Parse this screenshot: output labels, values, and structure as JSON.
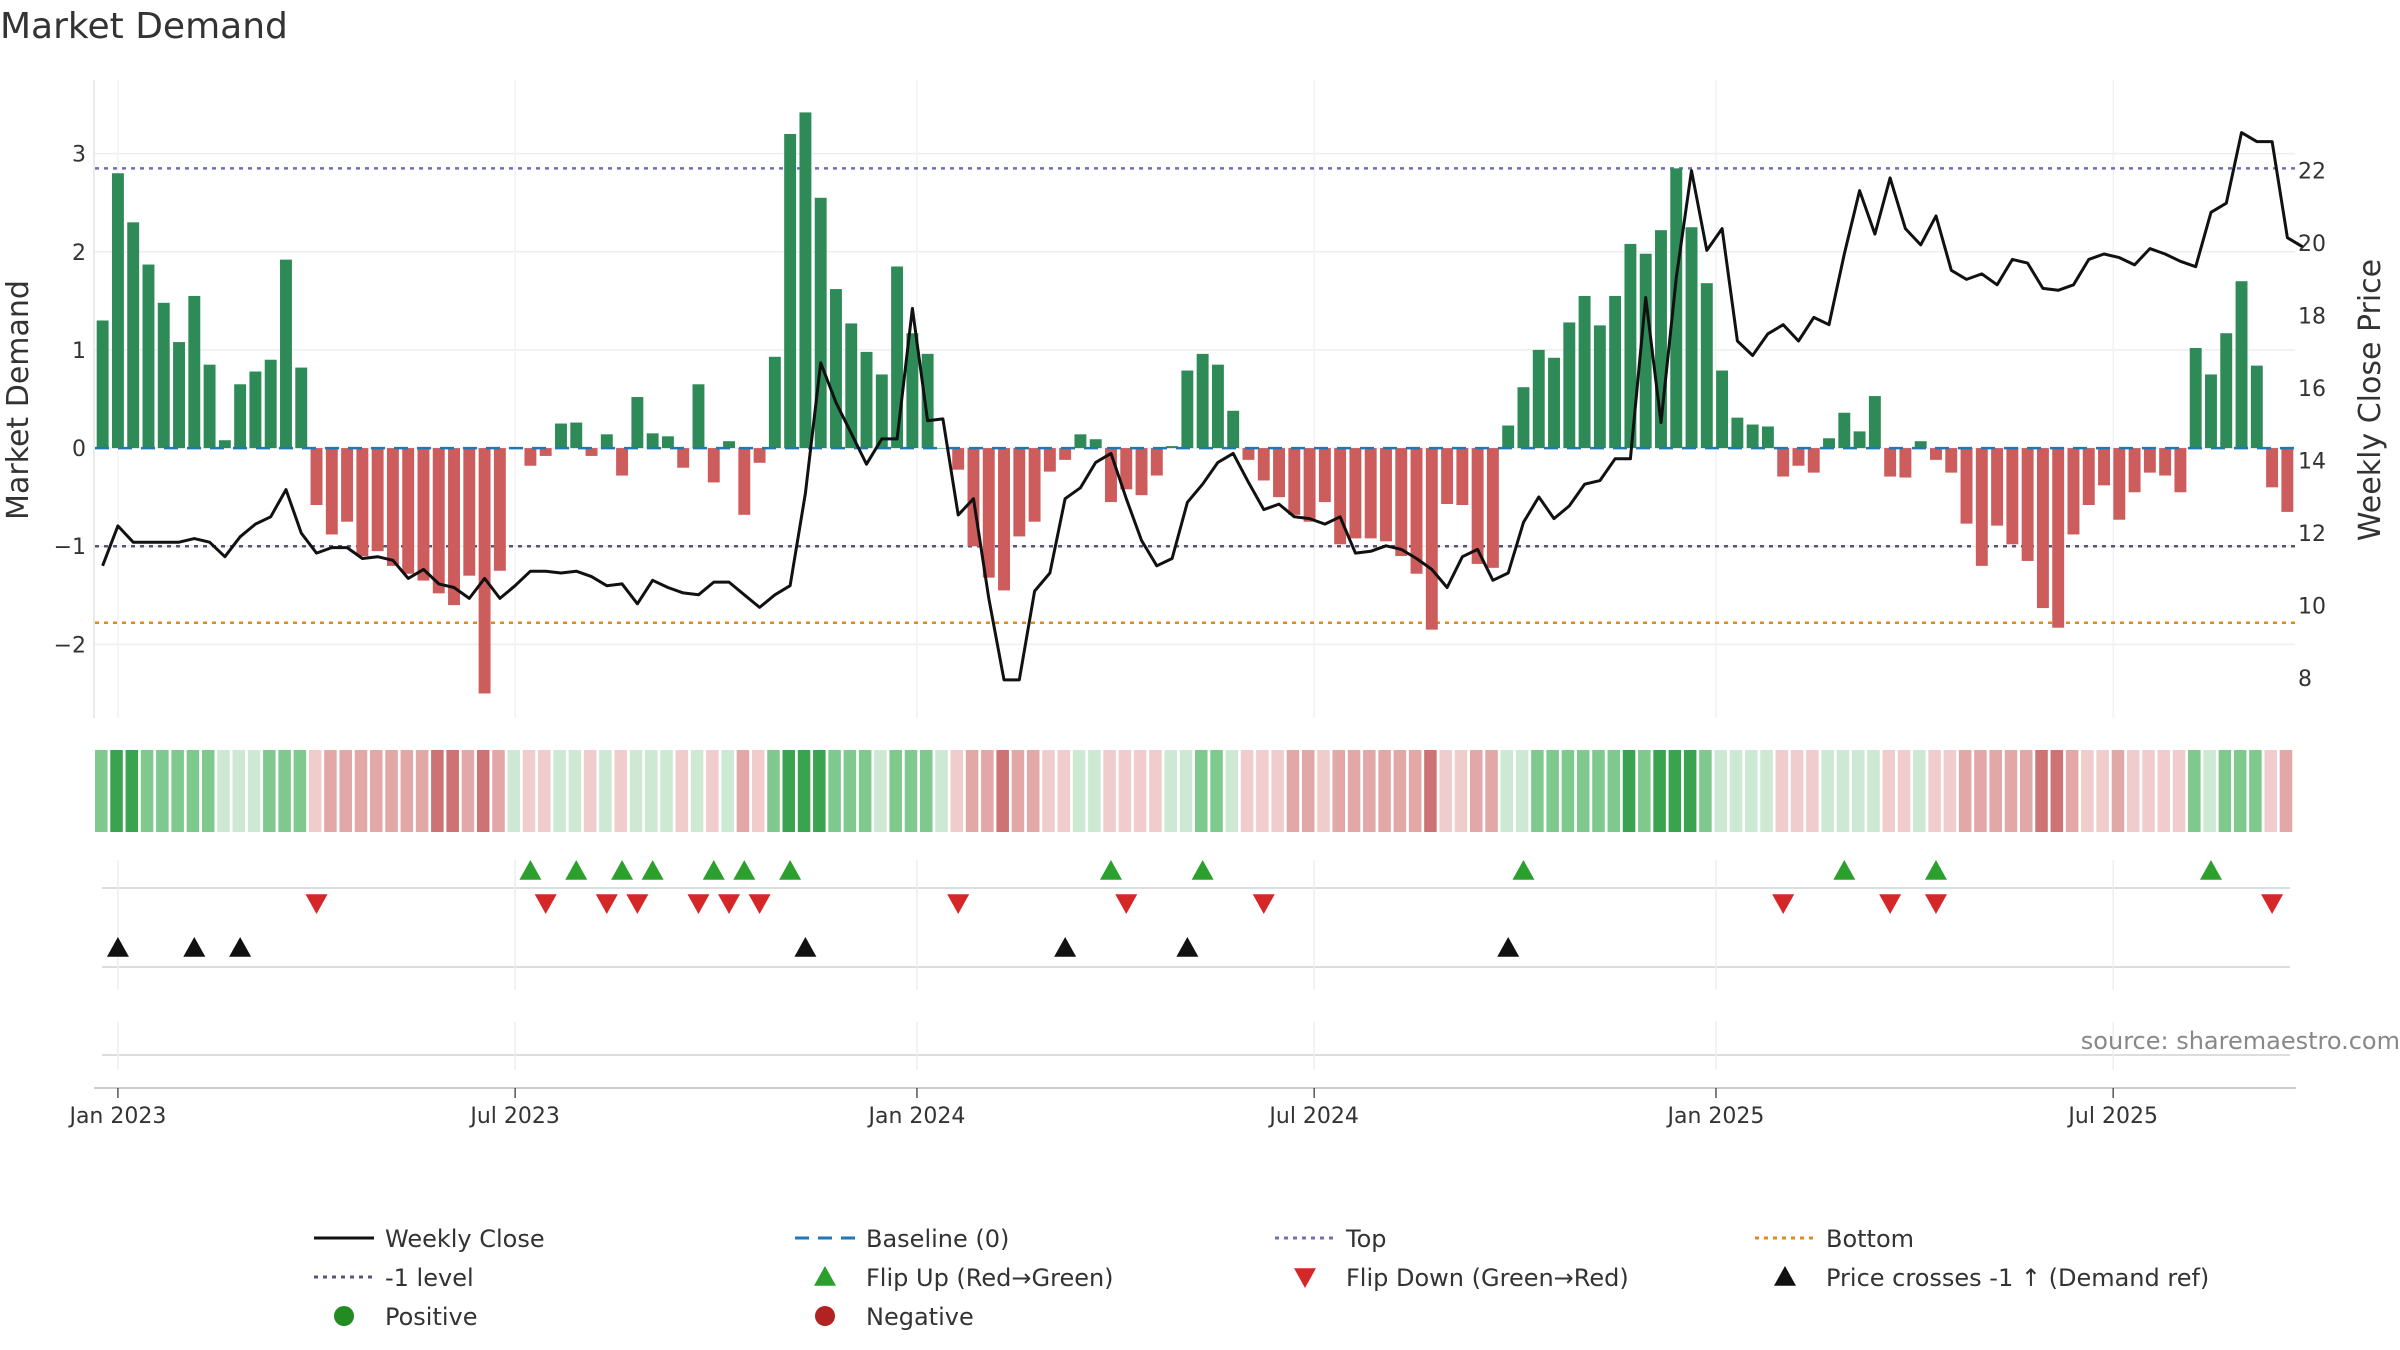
{
  "chart_data": {
    "type": "bar",
    "title": "Market Demand",
    "ylabel_left": "Market Demand",
    "ylabel_right": "Weekly Close Price",
    "ylim_left": [
      -2.75,
      3.75
    ],
    "ylim_right": [
      6.9,
      24.5
    ],
    "left_ticks": [
      {
        "value": -2,
        "label": "−2"
      },
      {
        "value": -1,
        "label": "−1"
      },
      {
        "value": 0,
        "label": "0"
      },
      {
        "value": 1,
        "label": "1"
      },
      {
        "value": 2,
        "label": "2"
      },
      {
        "value": 3,
        "label": "3"
      }
    ],
    "right_ticks": [
      8,
      10,
      12,
      14,
      16,
      18,
      20,
      22
    ],
    "x_ticks": [
      {
        "label": "Jan 2023",
        "index": 1
      },
      {
        "label": "Jul 2023",
        "index": 27
      },
      {
        "label": "Jan 2024",
        "index": 53.3
      },
      {
        "label": "Jul 2024",
        "index": 79.3
      },
      {
        "label": "Jan 2025",
        "index": 105.6
      },
      {
        "label": "Jul 2025",
        "index": 131.6
      }
    ],
    "reference_lines": {
      "top": 2.85,
      "minus_one": -1,
      "bottom": -1.78,
      "baseline": 0
    },
    "demand": [
      1.3,
      2.8,
      2.3,
      1.87,
      1.48,
      1.08,
      1.55,
      0.85,
      0.08,
      0.65,
      0.78,
      0.9,
      1.92,
      0.82,
      -0.58,
      -0.88,
      -0.75,
      -1.1,
      -1.05,
      -1.2,
      -1.28,
      -1.35,
      -1.48,
      -1.6,
      -1.3,
      -2.5,
      -1.25,
      0,
      -0.18,
      -0.08,
      0.25,
      0.26,
      -0.08,
      0.14,
      -0.28,
      0.52,
      0.15,
      0.12,
      -0.2,
      0.65,
      -0.35,
      0.07,
      -0.68,
      -0.15,
      0.93,
      3.2,
      3.42,
      2.55,
      1.62,
      1.27,
      0.98,
      0.75,
      1.85,
      1.17,
      0.96,
      0,
      -0.22,
      -1.0,
      -1.32,
      -1.45,
      -0.9,
      -0.75,
      -0.24,
      -0.12,
      0.14,
      0.09,
      -0.55,
      -0.42,
      -0.48,
      -0.28,
      0.02,
      0.79,
      0.96,
      0.85,
      0.38,
      -0.12,
      -0.33,
      -0.5,
      -0.68,
      -0.75,
      -0.55,
      -0.98,
      -0.92,
      -0.92,
      -0.95,
      -1.1,
      -1.28,
      -1.85,
      -0.57,
      -0.58,
      -1.18,
      -1.22,
      0.23,
      0.62,
      1.0,
      0.92,
      1.28,
      1.55,
      1.25,
      1.55,
      2.08,
      1.98,
      2.22,
      2.85,
      2.25,
      1.68,
      0.79,
      0.31,
      0.24,
      0.22,
      -0.29,
      -0.18,
      -0.25,
      0.1,
      0.36,
      0.17,
      0.53,
      -0.29,
      -0.3,
      0.07,
      -0.12,
      -0.25,
      -0.77,
      -1.2,
      -0.79,
      -0.98,
      -1.15,
      -1.63,
      -1.83,
      -0.88,
      -0.58,
      -0.38,
      -0.73,
      -0.45,
      -0.25,
      -0.28,
      -0.45,
      1.02,
      0.75,
      1.17,
      1.7,
      0.84,
      -0.4,
      -0.65
    ],
    "price": [
      11.1,
      12.2,
      11.75,
      11.75,
      11.75,
      11.75,
      11.85,
      11.75,
      11.35,
      11.9,
      12.25,
      12.45,
      13.2,
      12.0,
      11.45,
      11.6,
      11.6,
      11.3,
      11.35,
      11.25,
      10.75,
      11.0,
      10.6,
      10.5,
      10.2,
      10.75,
      10.2,
      10.55,
      10.95,
      10.95,
      10.9,
      10.95,
      10.8,
      10.55,
      10.6,
      10.05,
      10.7,
      10.5,
      10.35,
      10.3,
      10.65,
      10.65,
      10.3,
      9.95,
      10.3,
      10.55,
      13.1,
      16.7,
      15.6,
      14.75,
      13.9,
      14.6,
      14.6,
      18.2,
      15.1,
      15.15,
      12.5,
      12.95,
      10.2,
      7.95,
      7.95,
      10.4,
      10.9,
      12.95,
      13.25,
      13.95,
      14.2,
      12.95,
      11.8,
      11.1,
      11.3,
      12.85,
      13.35,
      13.95,
      14.2,
      13.4,
      12.65,
      12.8,
      12.45,
      12.4,
      12.25,
      12.45,
      11.45,
      11.5,
      11.65,
      11.55,
      11.3,
      11.0,
      10.5,
      11.35,
      11.55,
      10.7,
      10.9,
      12.3,
      13.0,
      12.4,
      12.75,
      13.35,
      13.45,
      14.05,
      14.05,
      18.5,
      15.05,
      19.05,
      22.0,
      19.8,
      20.4,
      17.3,
      16.9,
      17.5,
      17.75,
      17.3,
      17.95,
      17.75,
      19.7,
      21.45,
      20.25,
      21.8,
      20.4,
      19.95,
      20.75,
      19.25,
      19.0,
      19.15,
      18.85,
      19.55,
      19.45,
      18.75,
      18.7,
      18.85,
      19.55,
      19.7,
      19.6,
      19.4,
      19.85,
      19.7,
      19.5,
      19.35,
      20.85,
      21.1,
      23.05,
      22.8,
      22.8,
      20.15,
      19.9
    ],
    "bar_colors": {
      "positive": "#2e8b57",
      "negative": "#cd5c5c"
    },
    "line_color": "#111111",
    "heat_colors": {
      "green_strong": "#3aa34f",
      "green_mid": "#7fc98f",
      "green_light": "#cde9d3",
      "red_light": "#f0cccc",
      "red_mid": "#e2a7a7",
      "red_strong": "#cd7373"
    },
    "flip_up": [
      28,
      31,
      34,
      36,
      40,
      42,
      45,
      66,
      72,
      93,
      114,
      120,
      138
    ],
    "flip_down": [
      14,
      29,
      33,
      35,
      39,
      41,
      43,
      56,
      67,
      76,
      110,
      117,
      120,
      142
    ],
    "price_cross": [
      1,
      6,
      9,
      46,
      63,
      71,
      92
    ],
    "source": "source: sharemaestro.com",
    "legend": [
      {
        "label": "Weekly Close",
        "marker": "line",
        "color": "#111111"
      },
      {
        "label": "Baseline (0)",
        "marker": "dash",
        "color": "#1f77b4"
      },
      {
        "label": "Top",
        "marker": "dot",
        "color": "#6f6fb8"
      },
      {
        "label": "Bottom",
        "marker": "dot",
        "color": "#e08a1e"
      },
      {
        "label": "-1 level",
        "marker": "dot",
        "color": "#555577"
      },
      {
        "label": "Flip Up (Red→Green)",
        "marker": "tri-up",
        "color": "#2ca02c"
      },
      {
        "label": "Flip Down (Green→Red)",
        "marker": "tri-down",
        "color": "#d62728"
      },
      {
        "label": "Price crosses -1 ↑ (Demand ref)",
        "marker": "tri-up",
        "color": "#111111"
      },
      {
        "label": "Positive",
        "marker": "circle",
        "color": "#228b22"
      },
      {
        "label": "Negative",
        "marker": "circle",
        "color": "#b22222"
      }
    ]
  }
}
